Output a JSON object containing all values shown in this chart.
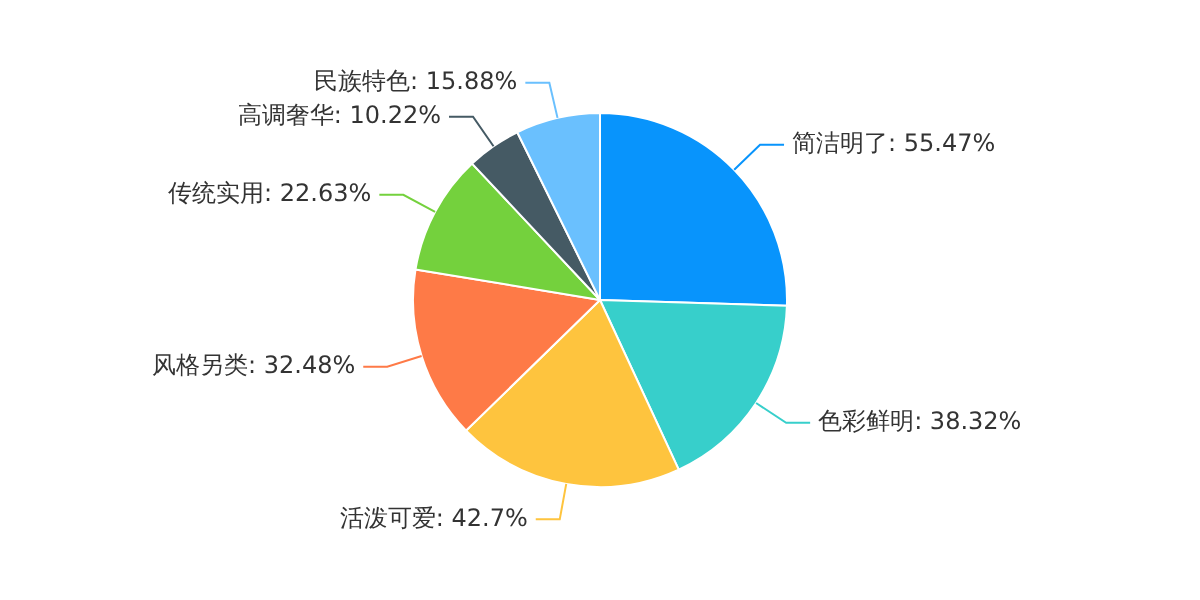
{
  "chart_data": {
    "type": "pie",
    "categories": [
      "简洁明了",
      "色彩鲜明",
      "活泼可爱",
      "风格另类",
      "传统实用",
      "高调奢华",
      "民族特色"
    ],
    "values": [
      55.47,
      38.32,
      42.7,
      32.48,
      22.63,
      10.22,
      15.88
    ],
    "value_labels": [
      "55.47%",
      "38.32%",
      "42.7%",
      "32.48%",
      "22.63%",
      "10.22%",
      "15.88%"
    ],
    "colors": [
      "#0894fc",
      "#37cfcb",
      "#fec43e",
      "#fe7a47",
      "#74d13d",
      "#455a64",
      "#6ac0fe"
    ],
    "legend": false
  }
}
